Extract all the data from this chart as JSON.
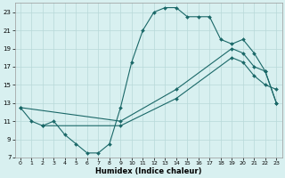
{
  "xlabel": "Humidex (Indice chaleur)",
  "bg_color": "#d8f0f0",
  "grid_color": "#b8d8d8",
  "line_color": "#1a6868",
  "xlim": [
    -0.5,
    23.5
  ],
  "ylim": [
    7,
    24
  ],
  "xticks": [
    0,
    1,
    2,
    3,
    4,
    5,
    6,
    7,
    8,
    9,
    10,
    11,
    12,
    13,
    14,
    15,
    16,
    17,
    18,
    19,
    20,
    21,
    22,
    23
  ],
  "yticks": [
    7,
    9,
    11,
    13,
    15,
    17,
    19,
    21,
    23
  ],
  "lines": [
    {
      "x": [
        0,
        1,
        2,
        3,
        4,
        5,
        6,
        7,
        8,
        9,
        10,
        11,
        12,
        13,
        14,
        15,
        16,
        17,
        18,
        19,
        20,
        21,
        22,
        23
      ],
      "y": [
        12.5,
        11.0,
        10.5,
        11.0,
        9.5,
        8.5,
        7.5,
        7.5,
        8.5,
        12.5,
        17.5,
        21.0,
        23.0,
        23.5,
        23.5,
        22.5,
        22.5,
        22.5,
        20.0,
        19.5,
        20.0,
        18.5,
        16.5,
        13.0
      ]
    },
    {
      "x": [
        0,
        9,
        14,
        19,
        20,
        21,
        22,
        23
      ],
      "y": [
        12.5,
        11.0,
        14.5,
        19.0,
        18.5,
        17.0,
        16.5,
        13.0
      ]
    },
    {
      "x": [
        2,
        9,
        14,
        19,
        20,
        21,
        22,
        23
      ],
      "y": [
        10.5,
        10.5,
        13.5,
        18.0,
        17.5,
        16.0,
        15.0,
        14.5
      ]
    }
  ]
}
